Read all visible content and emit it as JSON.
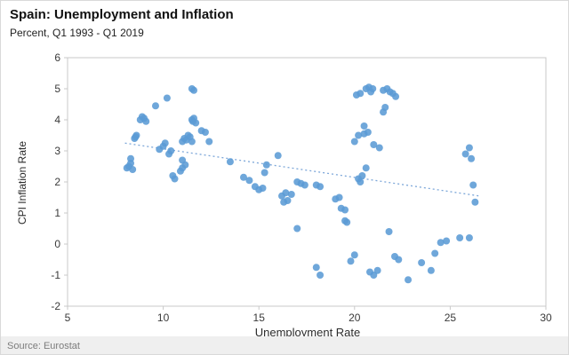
{
  "title": "Spain: Unemployment and Inflation",
  "subtitle": "Percent, Q1 1993 - Q1 2019",
  "source": "Source: Eurostat",
  "chart_data": {
    "type": "scatter",
    "title": "Spain: Unemployment and Inflation",
    "subtitle": "Percent, Q1 1993 - Q1 2019",
    "xlabel": "Unemployment  Rate",
    "ylabel": "CPI Inflation Rate",
    "xlim": [
      5,
      30
    ],
    "ylim": [
      -2,
      6
    ],
    "x_ticks": [
      5,
      10,
      15,
      20,
      25,
      30
    ],
    "y_ticks": [
      -2,
      -1,
      0,
      1,
      2,
      3,
      4,
      5,
      6
    ],
    "grid": false,
    "point_color": "#5B9BD5",
    "axis_color": "#c9c9c9",
    "trendline": {
      "x1": 8.0,
      "y1": 3.25,
      "x2": 26.5,
      "y2": 1.55,
      "style": "dotted",
      "color": "#7da7d9"
    },
    "points": [
      [
        8.1,
        2.45
      ],
      [
        8.2,
        2.5
      ],
      [
        8.3,
        2.6
      ],
      [
        8.4,
        2.4
      ],
      [
        8.3,
        2.75
      ],
      [
        8.5,
        3.4
      ],
      [
        8.6,
        3.5
      ],
      [
        8.55,
        3.45
      ],
      [
        8.8,
        4.0
      ],
      [
        8.9,
        4.1
      ],
      [
        9.0,
        4.05
      ],
      [
        9.1,
        3.95
      ],
      [
        9.6,
        4.45
      ],
      [
        10.2,
        4.7
      ],
      [
        9.8,
        3.05
      ],
      [
        10.0,
        3.15
      ],
      [
        10.1,
        3.25
      ],
      [
        10.3,
        2.9
      ],
      [
        10.4,
        3.0
      ],
      [
        10.5,
        2.2
      ],
      [
        10.6,
        2.1
      ],
      [
        10.9,
        2.35
      ],
      [
        11.0,
        2.45
      ],
      [
        11.15,
        2.55
      ],
      [
        11.0,
        2.7
      ],
      [
        11.0,
        3.3
      ],
      [
        11.1,
        3.4
      ],
      [
        11.2,
        3.35
      ],
      [
        11.4,
        3.45
      ],
      [
        11.3,
        3.5
      ],
      [
        11.5,
        3.3
      ],
      [
        11.5,
        4.0
      ],
      [
        11.6,
        4.05
      ],
      [
        11.7,
        3.9
      ],
      [
        11.55,
        3.95
      ],
      [
        11.5,
        5.0
      ],
      [
        11.6,
        4.95
      ],
      [
        12.0,
        3.65
      ],
      [
        12.2,
        3.6
      ],
      [
        12.4,
        3.3
      ],
      [
        13.5,
        2.65
      ],
      [
        14.2,
        2.15
      ],
      [
        14.5,
        2.05
      ],
      [
        14.8,
        1.85
      ],
      [
        15.0,
        1.75
      ],
      [
        15.2,
        1.8
      ],
      [
        15.4,
        2.55
      ],
      [
        15.3,
        2.3
      ],
      [
        16.0,
        2.85
      ],
      [
        16.2,
        1.55
      ],
      [
        16.4,
        1.65
      ],
      [
        16.7,
        1.6
      ],
      [
        16.5,
        1.4
      ],
      [
        16.3,
        1.35
      ],
      [
        17.0,
        2.0
      ],
      [
        17.2,
        1.95
      ],
      [
        17.4,
        1.9
      ],
      [
        17.0,
        0.5
      ],
      [
        18.0,
        1.9
      ],
      [
        18.2,
        1.85
      ],
      [
        18.0,
        -0.75
      ],
      [
        18.2,
        -1.0
      ],
      [
        19.0,
        1.45
      ],
      [
        19.2,
        1.5
      ],
      [
        19.3,
        1.15
      ],
      [
        19.5,
        1.1
      ],
      [
        19.5,
        0.75
      ],
      [
        19.6,
        0.7
      ],
      [
        19.8,
        -0.55
      ],
      [
        20.0,
        -0.35
      ],
      [
        20.2,
        2.1
      ],
      [
        20.4,
        2.2
      ],
      [
        20.3,
        2.0
      ],
      [
        20.0,
        3.3
      ],
      [
        20.2,
        3.5
      ],
      [
        20.5,
        3.55
      ],
      [
        20.1,
        4.8
      ],
      [
        20.3,
        4.85
      ],
      [
        20.6,
        5.0
      ],
      [
        20.75,
        5.05
      ],
      [
        20.85,
        4.9
      ],
      [
        20.95,
        5.0
      ],
      [
        20.5,
        3.8
      ],
      [
        20.7,
        3.6
      ],
      [
        20.6,
        2.45
      ],
      [
        20.8,
        -0.9
      ],
      [
        21.0,
        -1.0
      ],
      [
        21.2,
        -0.85
      ],
      [
        21.0,
        3.2
      ],
      [
        21.3,
        3.1
      ],
      [
        21.5,
        4.25
      ],
      [
        21.6,
        4.4
      ],
      [
        21.5,
        4.95
      ],
      [
        21.7,
        5.0
      ],
      [
        21.85,
        4.9
      ],
      [
        22.0,
        4.85
      ],
      [
        22.15,
        4.75
      ],
      [
        21.8,
        0.4
      ],
      [
        22.1,
        -0.4
      ],
      [
        22.3,
        -0.5
      ],
      [
        22.8,
        -1.15
      ],
      [
        23.5,
        -0.6
      ],
      [
        24.0,
        -0.85
      ],
      [
        24.2,
        -0.3
      ],
      [
        24.5,
        0.05
      ],
      [
        24.8,
        0.1
      ],
      [
        25.5,
        0.2
      ],
      [
        26.0,
        0.2
      ],
      [
        25.8,
        2.9
      ],
      [
        26.0,
        3.1
      ],
      [
        26.1,
        2.75
      ],
      [
        26.2,
        1.9
      ],
      [
        26.3,
        1.35
      ]
    ]
  }
}
